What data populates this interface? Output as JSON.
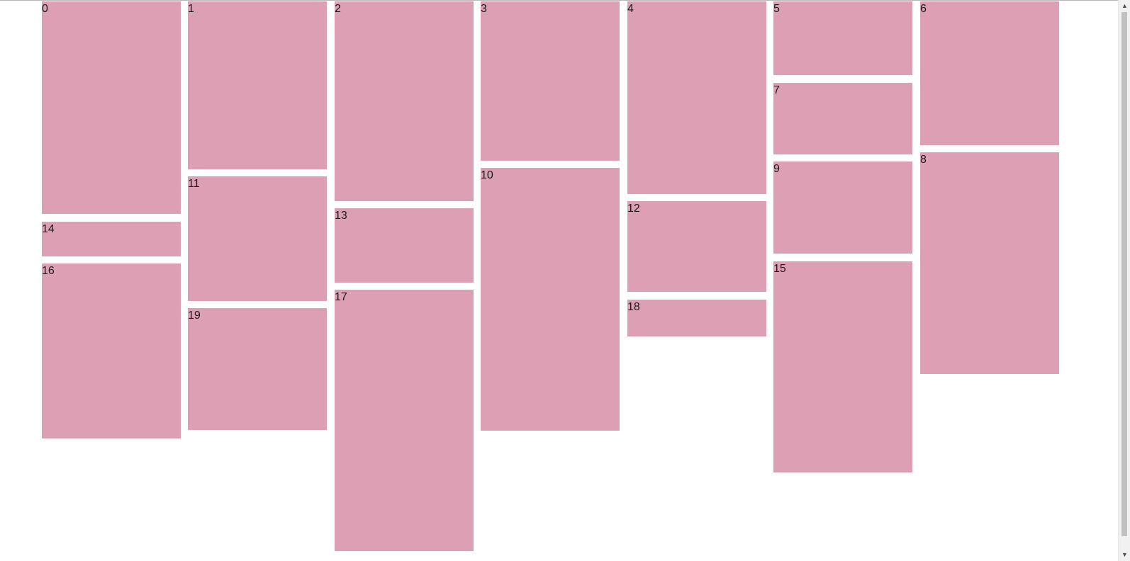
{
  "boxes": [
    {
      "label": "0"
    },
    {
      "label": "1"
    },
    {
      "label": "2"
    },
    {
      "label": "3"
    },
    {
      "label": "4"
    },
    {
      "label": "5"
    },
    {
      "label": "6"
    },
    {
      "label": "7"
    },
    {
      "label": "8"
    },
    {
      "label": "9"
    },
    {
      "label": "10"
    },
    {
      "label": "11"
    },
    {
      "label": "12"
    },
    {
      "label": "13"
    },
    {
      "label": "14"
    },
    {
      "label": "15"
    },
    {
      "label": "16"
    },
    {
      "label": "17"
    },
    {
      "label": "18"
    },
    {
      "label": "19"
    }
  ],
  "colors": {
    "box": "#dd9fb4",
    "background": "#ffffff"
  },
  "scrollbar": {
    "up_icon": "scroll-up-arrow-icon",
    "down_icon": "scroll-down-arrow-icon"
  }
}
